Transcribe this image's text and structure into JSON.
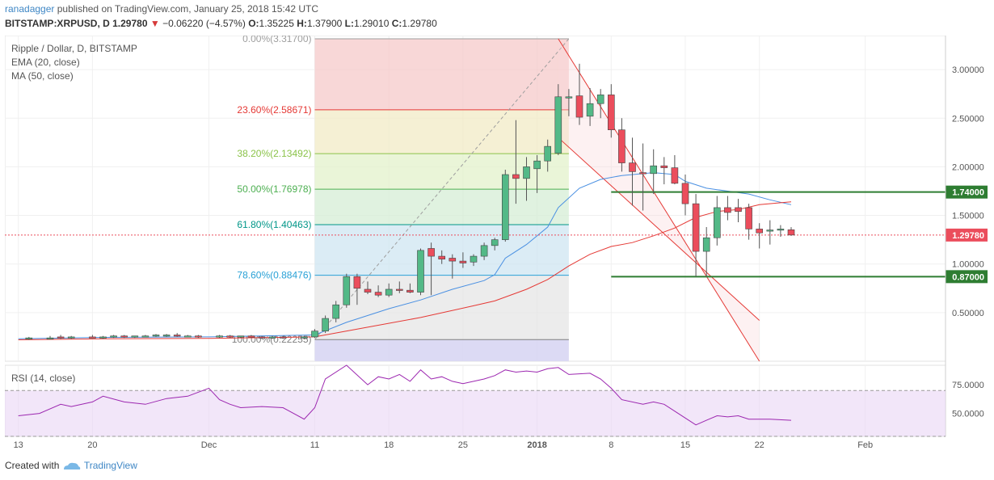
{
  "header": {
    "publisher": "ranadagger",
    "published_text": "published on TradingView.com, January 25, 2018 15:42 UTC",
    "symbol": "BITSTAMP:XRPUSD, D",
    "last": "1.29780",
    "change": "−0.06220 (−4.57%)",
    "open_label": "O:",
    "open": "1.35225",
    "high_label": "H:",
    "high": "1.37900",
    "low_label": "L:",
    "low": "1.29010",
    "close_label": "C:",
    "close": "1.29780"
  },
  "legend": {
    "title": "Ripple / Dollar, D, BITSTAMP",
    "ema": "EMA (20, close)",
    "ma": "MA (50, close)"
  },
  "footer": {
    "created_with": "Created with",
    "brand": "TradingView"
  },
  "colors": {
    "up": "#53b987",
    "down": "#eb4d5c",
    "ema": "#4a90e2",
    "ma": "#e53935",
    "level_line": "#2e7d32",
    "rsi": "#9c27b0",
    "channel": "#e53935"
  },
  "chart_data": {
    "type": "candlestick",
    "title": "Ripple / Dollar, D, BITSTAMP",
    "y_ticks": [
      "3.00000",
      "2.50000",
      "2.00000",
      "1.50000",
      "1.00000",
      "0.50000"
    ],
    "y_tick_values": [
      3.0,
      2.5,
      2.0,
      1.5,
      1.0,
      0.5
    ],
    "ylim": [
      0.0,
      3.35
    ],
    "x_ticks": [
      {
        "label": "13",
        "day": -48,
        "bold": false
      },
      {
        "label": "20",
        "day": -41,
        "bold": false
      },
      {
        "label": "Dec",
        "day": -30,
        "bold": false
      },
      {
        "label": "11",
        "day": -20,
        "bold": false
      },
      {
        "label": "18",
        "day": -13,
        "bold": false
      },
      {
        "label": "25",
        "day": -6,
        "bold": false
      },
      {
        "label": "2018",
        "day": 1,
        "bold": true
      },
      {
        "label": "8",
        "day": 8,
        "bold": false
      },
      {
        "label": "15",
        "day": 15,
        "bold": false
      },
      {
        "label": "22",
        "day": 22,
        "bold": false
      },
      {
        "label": "Feb",
        "day": 32,
        "bold": false
      }
    ],
    "candles": [
      {
        "d": -47,
        "o": 0.23,
        "h": 0.25,
        "l": 0.22,
        "c": 0.24
      },
      {
        "d": -45,
        "o": 0.24,
        "h": 0.26,
        "l": 0.23,
        "c": 0.24
      },
      {
        "d": -44,
        "o": 0.25,
        "h": 0.27,
        "l": 0.23,
        "c": 0.24
      },
      {
        "d": -43,
        "o": 0.24,
        "h": 0.26,
        "l": 0.23,
        "c": 0.25
      },
      {
        "d": -41,
        "o": 0.25,
        "h": 0.27,
        "l": 0.24,
        "c": 0.24
      },
      {
        "d": -40,
        "o": 0.24,
        "h": 0.26,
        "l": 0.23,
        "c": 0.25
      },
      {
        "d": -39,
        "o": 0.25,
        "h": 0.27,
        "l": 0.24,
        "c": 0.26
      },
      {
        "d": -38,
        "o": 0.26,
        "h": 0.27,
        "l": 0.24,
        "c": 0.25
      },
      {
        "d": -37,
        "o": 0.25,
        "h": 0.26,
        "l": 0.24,
        "c": 0.26
      },
      {
        "d": -36,
        "o": 0.26,
        "h": 0.27,
        "l": 0.25,
        "c": 0.26
      },
      {
        "d": -35,
        "o": 0.26,
        "h": 0.28,
        "l": 0.25,
        "c": 0.27
      },
      {
        "d": -34,
        "o": 0.26,
        "h": 0.28,
        "l": 0.25,
        "c": 0.27
      },
      {
        "d": -33,
        "o": 0.27,
        "h": 0.29,
        "l": 0.25,
        "c": 0.26
      },
      {
        "d": -32,
        "o": 0.26,
        "h": 0.27,
        "l": 0.25,
        "c": 0.26
      },
      {
        "d": -31,
        "o": 0.26,
        "h": 0.27,
        "l": 0.24,
        "c": 0.25
      },
      {
        "d": -29,
        "o": 0.25,
        "h": 0.27,
        "l": 0.24,
        "c": 0.26
      },
      {
        "d": -28,
        "o": 0.26,
        "h": 0.27,
        "l": 0.24,
        "c": 0.25
      },
      {
        "d": -27,
        "o": 0.25,
        "h": 0.26,
        "l": 0.24,
        "c": 0.26
      },
      {
        "d": -26,
        "o": 0.26,
        "h": 0.27,
        "l": 0.25,
        "c": 0.25
      },
      {
        "d": -25,
        "o": 0.25,
        "h": 0.26,
        "l": 0.23,
        "c": 0.24
      },
      {
        "d": -24,
        "o": 0.24,
        "h": 0.26,
        "l": 0.23,
        "c": 0.25
      },
      {
        "d": -23,
        "o": 0.25,
        "h": 0.26,
        "l": 0.23,
        "c": 0.24
      },
      {
        "d": -21,
        "o": 0.24,
        "h": 0.26,
        "l": 0.23,
        "c": 0.25
      },
      {
        "d": -20,
        "o": 0.25,
        "h": 0.33,
        "l": 0.24,
        "c": 0.31
      },
      {
        "d": -19,
        "o": 0.31,
        "h": 0.47,
        "l": 0.29,
        "c": 0.44
      },
      {
        "d": -18,
        "o": 0.44,
        "h": 0.62,
        "l": 0.4,
        "c": 0.58
      },
      {
        "d": -17,
        "o": 0.58,
        "h": 0.9,
        "l": 0.55,
        "c": 0.87
      },
      {
        "d": -16,
        "o": 0.87,
        "h": 0.9,
        "l": 0.58,
        "c": 0.75
      },
      {
        "d": -15,
        "o": 0.74,
        "h": 0.82,
        "l": 0.69,
        "c": 0.71
      },
      {
        "d": -14,
        "o": 0.71,
        "h": 0.78,
        "l": 0.66,
        "c": 0.68
      },
      {
        "d": -13,
        "o": 0.68,
        "h": 0.8,
        "l": 0.66,
        "c": 0.74
      },
      {
        "d": -12,
        "o": 0.74,
        "h": 0.82,
        "l": 0.7,
        "c": 0.73
      },
      {
        "d": -11,
        "o": 0.73,
        "h": 0.8,
        "l": 0.7,
        "c": 0.71
      },
      {
        "d": -10,
        "o": 0.71,
        "h": 1.16,
        "l": 0.68,
        "c": 1.14
      },
      {
        "d": -9,
        "o": 1.16,
        "h": 1.22,
        "l": 0.68,
        "c": 1.08
      },
      {
        "d": -8,
        "o": 1.08,
        "h": 1.14,
        "l": 1.0,
        "c": 1.05
      },
      {
        "d": -7,
        "o": 1.06,
        "h": 1.1,
        "l": 0.85,
        "c": 1.03
      },
      {
        "d": -6,
        "o": 1.03,
        "h": 1.12,
        "l": 0.96,
        "c": 1.01
      },
      {
        "d": -5,
        "o": 1.02,
        "h": 1.1,
        "l": 0.98,
        "c": 1.08
      },
      {
        "d": -4,
        "o": 1.08,
        "h": 1.22,
        "l": 1.04,
        "c": 1.19
      },
      {
        "d": -3,
        "o": 1.19,
        "h": 1.27,
        "l": 1.14,
        "c": 1.25
      },
      {
        "d": -2,
        "o": 1.25,
        "h": 1.97,
        "l": 1.23,
        "c": 1.92
      },
      {
        "d": -1,
        "o": 1.92,
        "h": 2.48,
        "l": 1.62,
        "c": 1.88
      },
      {
        "d": 0,
        "o": 1.88,
        "h": 2.1,
        "l": 1.65,
        "c": 2.0
      },
      {
        "d": 1,
        "o": 1.98,
        "h": 2.12,
        "l": 1.73,
        "c": 2.06
      },
      {
        "d": 2,
        "o": 2.06,
        "h": 2.28,
        "l": 1.95,
        "c": 2.21
      },
      {
        "d": 3,
        "o": 2.14,
        "h": 2.85,
        "l": 2.12,
        "c": 2.72
      },
      {
        "d": 4,
        "o": 2.72,
        "h": 2.8,
        "l": 2.52,
        "c": 2.72
      },
      {
        "d": 5,
        "o": 2.73,
        "h": 3.06,
        "l": 2.43,
        "c": 2.51
      },
      {
        "d": 6,
        "o": 2.52,
        "h": 2.81,
        "l": 2.42,
        "c": 2.65
      },
      {
        "d": 7,
        "o": 2.65,
        "h": 2.8,
        "l": 2.5,
        "c": 2.74
      },
      {
        "d": 8,
        "o": 2.74,
        "h": 2.85,
        "l": 2.3,
        "c": 2.38
      },
      {
        "d": 9,
        "o": 2.38,
        "h": 2.5,
        "l": 1.95,
        "c": 2.04
      },
      {
        "d": 10,
        "o": 2.04,
        "h": 2.3,
        "l": 1.6,
        "c": 1.95
      },
      {
        "d": 11,
        "o": 1.94,
        "h": 2.24,
        "l": 1.55,
        "c": 1.93
      },
      {
        "d": 12,
        "o": 1.93,
        "h": 2.18,
        "l": 1.72,
        "c": 2.01
      },
      {
        "d": 13,
        "o": 2.01,
        "h": 2.1,
        "l": 1.82,
        "c": 1.99
      },
      {
        "d": 14,
        "o": 1.99,
        "h": 2.12,
        "l": 1.82,
        "c": 1.83
      },
      {
        "d": 15,
        "o": 1.83,
        "h": 1.92,
        "l": 1.5,
        "c": 1.62
      },
      {
        "d": 16,
        "o": 1.62,
        "h": 1.72,
        "l": 0.87,
        "c": 1.13
      },
      {
        "d": 17,
        "o": 1.13,
        "h": 1.38,
        "l": 0.87,
        "c": 1.27
      },
      {
        "d": 18,
        "o": 1.27,
        "h": 1.7,
        "l": 1.19,
        "c": 1.58
      },
      {
        "d": 19,
        "o": 1.58,
        "h": 1.7,
        "l": 1.45,
        "c": 1.53
      },
      {
        "d": 20,
        "o": 1.58,
        "h": 1.67,
        "l": 1.43,
        "c": 1.54
      },
      {
        "d": 21,
        "o": 1.58,
        "h": 1.62,
        "l": 1.25,
        "c": 1.36
      },
      {
        "d": 22,
        "o": 1.36,
        "h": 1.42,
        "l": 1.16,
        "c": 1.32
      },
      {
        "d": 23,
        "o": 1.34,
        "h": 1.45,
        "l": 1.2,
        "c": 1.35
      },
      {
        "d": 24,
        "o": 1.35,
        "h": 1.4,
        "l": 1.28,
        "c": 1.36
      },
      {
        "d": 25,
        "o": 1.35225,
        "h": 1.379,
        "l": 1.2901,
        "c": 1.2978
      }
    ],
    "ema_20": [
      [
        -48,
        0.23
      ],
      [
        -40,
        0.245
      ],
      [
        -30,
        0.25
      ],
      [
        -20,
        0.27
      ],
      [
        -17,
        0.4
      ],
      [
        -13,
        0.54
      ],
      [
        -10,
        0.63
      ],
      [
        -7,
        0.74
      ],
      [
        -4,
        0.83
      ],
      [
        -3,
        0.89
      ],
      [
        -2,
        1.06
      ],
      [
        0,
        1.2
      ],
      [
        2,
        1.38
      ],
      [
        3,
        1.58
      ],
      [
        5,
        1.78
      ],
      [
        7,
        1.87
      ],
      [
        9,
        1.91
      ],
      [
        12,
        1.94
      ],
      [
        14,
        1.92
      ],
      [
        15,
        1.85
      ],
      [
        17,
        1.78
      ],
      [
        19,
        1.75
      ],
      [
        21,
        1.72
      ],
      [
        23,
        1.66
      ],
      [
        25,
        1.61
      ]
    ],
    "ma_50": [
      [
        -48,
        0.22
      ],
      [
        -40,
        0.23
      ],
      [
        -30,
        0.235
      ],
      [
        -20,
        0.25
      ],
      [
        -15,
        0.35
      ],
      [
        -10,
        0.45
      ],
      [
        -5,
        0.57
      ],
      [
        -3,
        0.62
      ],
      [
        0,
        0.74
      ],
      [
        2,
        0.84
      ],
      [
        4,
        0.98
      ],
      [
        6,
        1.1
      ],
      [
        8,
        1.18
      ],
      [
        10,
        1.22
      ],
      [
        12,
        1.29
      ],
      [
        14,
        1.37
      ],
      [
        16,
        1.48
      ],
      [
        18,
        1.54
      ],
      [
        20,
        1.56
      ],
      [
        22,
        1.61
      ],
      [
        24,
        1.63
      ],
      [
        25,
        1.64
      ]
    ],
    "fib": {
      "from_day": -20,
      "to_day": 4,
      "levels": [
        {
          "label": "0.00%(3.31700)",
          "value": 3.317,
          "color": "#9e9e9e",
          "fill": "#f6c9c9"
        },
        {
          "label": "23.60%(2.58671)",
          "value": 2.58671,
          "color": "#e53935",
          "fill": "#f2ebc5"
        },
        {
          "label": "38.20%(2.13492)",
          "value": 2.13492,
          "color": "#8bc34a",
          "fill": "#e3f1cb"
        },
        {
          "label": "50.00%(1.76978)",
          "value": 1.76978,
          "color": "#4caf50",
          "fill": "#d5edd6"
        },
        {
          "label": "61.80%(1.40463)",
          "value": 1.40463,
          "color": "#009688",
          "fill": "#cfe6f2"
        },
        {
          "label": "78.60%(0.88476)",
          "value": 0.88476,
          "color": "#29a1d6",
          "fill": "#e6e6e6"
        },
        {
          "label": "100.00%(0.22255)",
          "value": 0.22255,
          "color": "#7f7f7f",
          "fill": "#d6d3f2"
        }
      ]
    },
    "levels": [
      {
        "label": "1.74000",
        "value": 1.74,
        "from_day": 8
      },
      {
        "label": "0.87000",
        "value": 0.87,
        "from_day": 8
      }
    ],
    "current_price": {
      "label": "1.29780",
      "value": 1.2978
    },
    "rsi": {
      "label": "RSI (14, close)",
      "y_ticks": [
        "75.0000",
        "50.0000"
      ],
      "y_tick_values": [
        75,
        50
      ],
      "ylim": [
        30,
        92
      ],
      "bands": [
        70,
        30
      ],
      "values": [
        [
          -48,
          48
        ],
        [
          -46,
          50
        ],
        [
          -44,
          58
        ],
        [
          -43,
          56
        ],
        [
          -41,
          60
        ],
        [
          -40,
          65
        ],
        [
          -38,
          60
        ],
        [
          -36,
          58
        ],
        [
          -34,
          63
        ],
        [
          -32,
          65
        ],
        [
          -30,
          72
        ],
        [
          -29,
          62
        ],
        [
          -28,
          58
        ],
        [
          -27,
          55
        ],
        [
          -25,
          56
        ],
        [
          -23,
          55
        ],
        [
          -21,
          45
        ],
        [
          -20,
          55
        ],
        [
          -19,
          80
        ],
        [
          -17,
          92
        ],
        [
          -15,
          75
        ],
        [
          -14,
          82
        ],
        [
          -13,
          80
        ],
        [
          -12,
          84
        ],
        [
          -11,
          78
        ],
        [
          -10,
          88
        ],
        [
          -9,
          80
        ],
        [
          -8,
          82
        ],
        [
          -7,
          78
        ],
        [
          -6,
          76
        ],
        [
          -4,
          80
        ],
        [
          -3,
          83
        ],
        [
          -2,
          88
        ],
        [
          -1,
          86
        ],
        [
          0,
          87
        ],
        [
          1,
          86
        ],
        [
          2,
          89
        ],
        [
          3,
          90
        ],
        [
          4,
          84
        ],
        [
          6,
          85
        ],
        [
          7,
          80
        ],
        [
          8,
          72
        ],
        [
          9,
          62
        ],
        [
          11,
          58
        ],
        [
          12,
          60
        ],
        [
          13,
          58
        ],
        [
          14,
          52
        ],
        [
          15,
          46
        ],
        [
          16,
          40
        ],
        [
          17,
          44
        ],
        [
          18,
          48
        ],
        [
          19,
          47
        ],
        [
          20,
          48
        ],
        [
          21,
          45
        ],
        [
          23,
          45
        ],
        [
          25,
          44
        ]
      ]
    }
  }
}
